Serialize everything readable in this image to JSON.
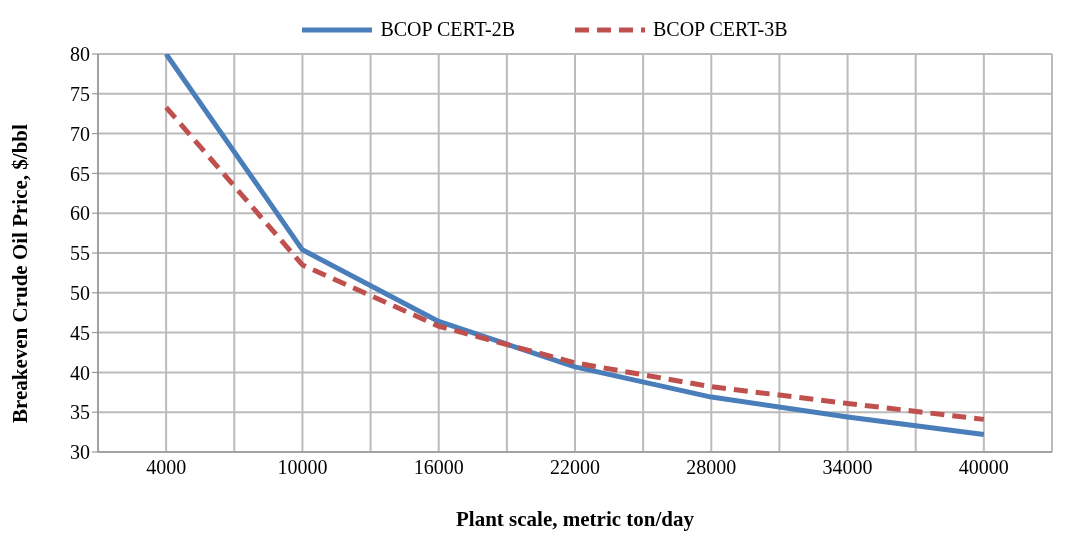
{
  "chart_data": {
    "type": "line",
    "xlabel": "Plant scale, metric ton/day",
    "ylabel": "Breakeven Crude Oil Price, $/bbl",
    "x": [
      4000,
      10000,
      16000,
      22000,
      28000,
      34000,
      40000
    ],
    "series": [
      {
        "name": "BCOP CERT-2B",
        "color": "#4a7ebb",
        "line_style": "solid",
        "values": [
          80,
          55.4,
          46.4,
          40.7,
          36.9,
          34.4,
          32.2
        ]
      },
      {
        "name": "BCOP CERT-3B",
        "color": "#c0504d",
        "line_style": "dashed",
        "values": [
          73.3,
          53.5,
          45.8,
          41.2,
          38.2,
          36.1,
          34.1
        ]
      }
    ],
    "xlim": [
      1000,
      43000
    ],
    "xticks": [
      4000,
      {
        "value": 7000,
        "label": null
      },
      10000,
      {
        "value": 13000,
        "label": null
      },
      16000,
      {
        "value": 19000,
        "label": null
      },
      22000,
      {
        "value": 25000,
        "label": null
      },
      28000,
      {
        "value": 31000,
        "label": null
      },
      34000,
      {
        "value": 37000,
        "label": null
      },
      40000
    ],
    "ylim": [
      30,
      80
    ],
    "yticks": [
      30,
      35,
      40,
      45,
      50,
      55,
      60,
      65,
      70,
      75,
      80
    ],
    "grid": true,
    "legend": "top",
    "marker": "none"
  }
}
